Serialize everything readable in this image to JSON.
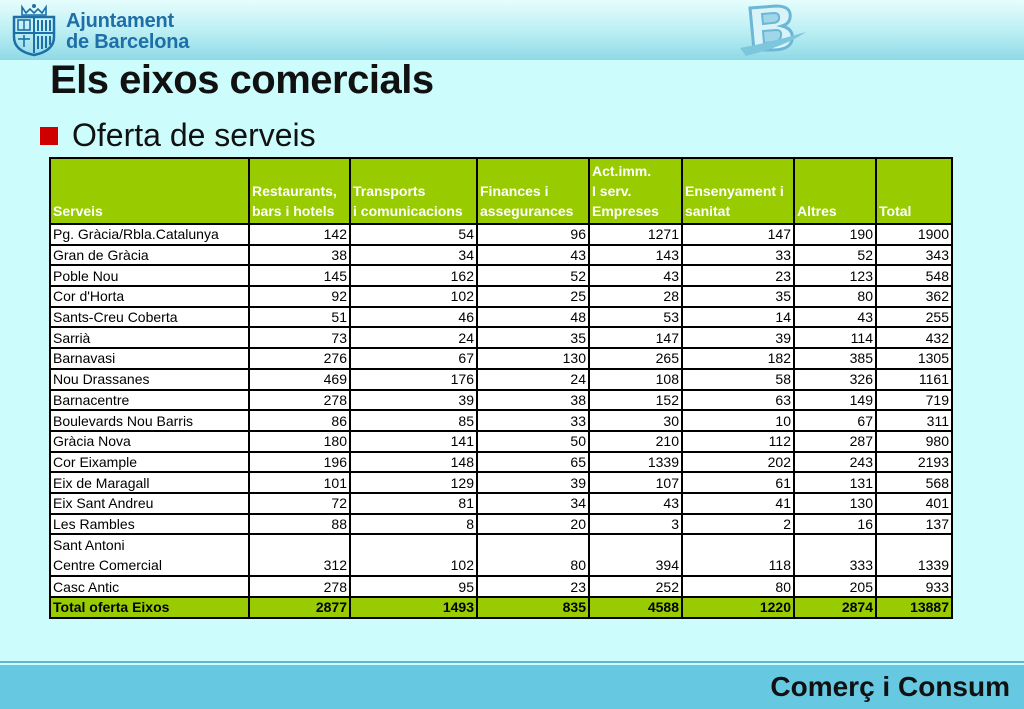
{
  "header": {
    "logo_line1": "Ajuntament",
    "logo_line2": "de Barcelona"
  },
  "page_title": "Els eixos comercials",
  "bullet": "Oferta de serveis",
  "table": {
    "headers": [
      [
        "Serveis"
      ],
      [
        "Restaurants,",
        "bars i hotels"
      ],
      [
        "Transports",
        "i comunicacions"
      ],
      [
        "Finances i",
        "assegurances"
      ],
      [
        "Act.imm.",
        "I serv.",
        "Empreses"
      ],
      [
        "Ensenyament i",
        "sanitat"
      ],
      [
        "Altres"
      ],
      [
        "Total"
      ]
    ],
    "rows": [
      [
        "Pg. Gràcia/Rbla.Catalunya",
        "142",
        "54",
        "96",
        "1271",
        "147",
        "190",
        "1900"
      ],
      [
        "Gran de Gràcia",
        "38",
        "34",
        "43",
        "143",
        "33",
        "52",
        "343"
      ],
      [
        "Poble Nou",
        "145",
        "162",
        "52",
        "43",
        "23",
        "123",
        "548"
      ],
      [
        "Cor d'Horta",
        "92",
        "102",
        "25",
        "28",
        "35",
        "80",
        "362"
      ],
      [
        "Sants-Creu Coberta",
        "51",
        "46",
        "48",
        "53",
        "14",
        "43",
        "255"
      ],
      [
        "Sarrià",
        "73",
        "24",
        "35",
        "147",
        "39",
        "114",
        "432"
      ],
      [
        "Barnavasi",
        "276",
        "67",
        "130",
        "265",
        "182",
        "385",
        "1305"
      ],
      [
        "Nou Drassanes",
        "469",
        "176",
        "24",
        "108",
        "58",
        "326",
        "1161"
      ],
      [
        "Barnacentre",
        "278",
        "39",
        "38",
        "152",
        "63",
        "149",
        "719"
      ],
      [
        "Boulevards Nou Barris",
        "86",
        "85",
        "33",
        "30",
        "10",
        "67",
        "311"
      ],
      [
        "Gràcia Nova",
        "180",
        "141",
        "50",
        "210",
        "112",
        "287",
        "980"
      ],
      [
        "Cor Eixample",
        "196",
        "148",
        "65",
        "1339",
        "202",
        "243",
        "2193"
      ],
      [
        "Eix de Maragall",
        "101",
        "129",
        "39",
        "107",
        "61",
        "131",
        "568"
      ],
      [
        "Eix Sant Andreu",
        "72",
        "81",
        "34",
        "43",
        "41",
        "130",
        "401"
      ],
      [
        "Les Rambles",
        "88",
        "8",
        "20",
        "3",
        "2",
        "16",
        "137"
      ],
      [
        "Sant Antoni",
        "",
        "",
        "",
        "",
        "",
        "",
        ""
      ],
      [
        "Casc Antic",
        "278",
        "95",
        "23",
        "252",
        "80",
        "205",
        "933"
      ]
    ],
    "sant_antoni_line2": [
      "Centre Comercial",
      "312",
      "102",
      "80",
      "394",
      "118",
      "333",
      "1339"
    ],
    "total_row": [
      "Total oferta Eixos",
      "2877",
      "1493",
      "835",
      "4588",
      "1220",
      "2874",
      "13887"
    ]
  },
  "footer": "Comerç i Consum",
  "colors": {
    "background": "#ccfcfc",
    "header_cells": "#99cc00",
    "bullet": "#d00000",
    "footer_bar": "#67c8e2",
    "logo_text": "#1e6fa8"
  }
}
